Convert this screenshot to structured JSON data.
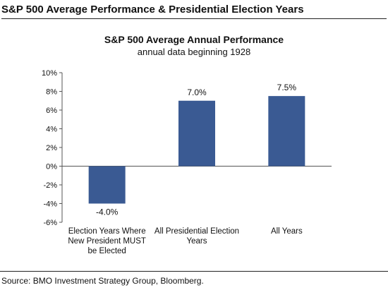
{
  "page": {
    "title": "S&P 500 Average Performance & Presidential Election Years",
    "source": "Source: BMO Investment Strategy Group, Bloomberg."
  },
  "chart_data": {
    "type": "bar",
    "title": "S&P 500 Average Annual Performance",
    "subtitle": "annual data beginning 1928",
    "categories": [
      [
        "Election Years Where",
        "New President MUST",
        "be Elected"
      ],
      [
        "All Presidential Election",
        "Years"
      ],
      [
        "All Years"
      ]
    ],
    "values": [
      -4.0,
      7.0,
      7.5
    ],
    "value_labels": [
      "-4.0%",
      "7.0%",
      "7.5%"
    ],
    "ylim": [
      -6,
      10
    ],
    "yticks": [
      -6,
      -4,
      -2,
      0,
      2,
      4,
      6,
      8,
      10
    ],
    "ytick_labels": [
      "-6%",
      "-4%",
      "-2%",
      "0%",
      "2%",
      "4%",
      "6%",
      "8%",
      "10%"
    ],
    "bar_color": "#3a5a93",
    "grid": false,
    "legend": "none"
  }
}
